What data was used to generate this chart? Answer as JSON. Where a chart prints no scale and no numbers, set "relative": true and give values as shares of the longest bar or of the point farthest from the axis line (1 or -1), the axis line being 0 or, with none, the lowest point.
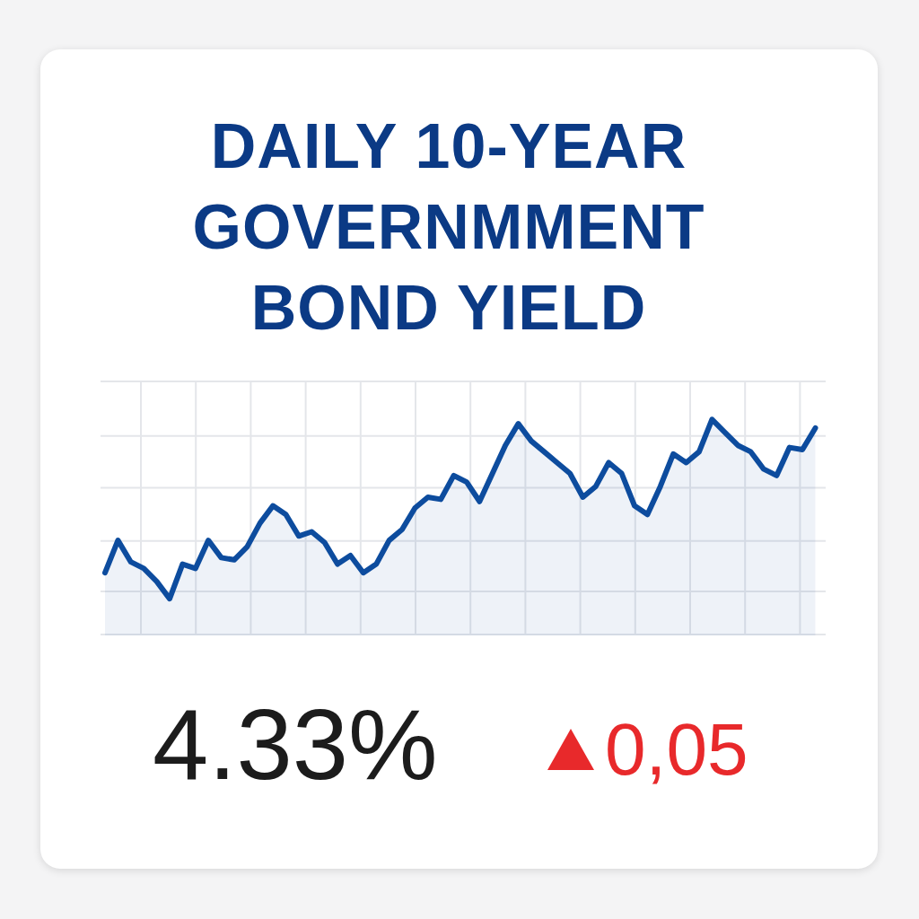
{
  "chart_data": {
    "type": "area",
    "title": "DAILY 10-YEAR GOVERNMMENT BOND YIELD",
    "relative": true,
    "grid": true,
    "categories": [
      null,
      null,
      null,
      null,
      null,
      null,
      null,
      null,
      null,
      null,
      null,
      null,
      null,
      null,
      null,
      null,
      null,
      null,
      null,
      null,
      null,
      null,
      null,
      null,
      null,
      null,
      null,
      null,
      null,
      null,
      null,
      null,
      null,
      null,
      null,
      null,
      null,
      null,
      null,
      null,
      null,
      null,
      null,
      null,
      null,
      null,
      null,
      null,
      null,
      null,
      null,
      null,
      null,
      null,
      null,
      null
    ],
    "series": [
      {
        "color": "#0d4c9e",
        "values": [
          0.29,
          0.44,
          0.34,
          0.31,
          0.25,
          0.17,
          0.33,
          0.31,
          0.44,
          0.36,
          0.35,
          0.41,
          0.52,
          0.6,
          0.56,
          0.46,
          0.48,
          0.43,
          0.33,
          0.37,
          0.29,
          0.33,
          0.44,
          0.49,
          0.59,
          0.64,
          0.63,
          0.74,
          0.71,
          0.62,
          0.75,
          0.88,
          0.98,
          0.9,
          0.85,
          0.8,
          0.75,
          0.64,
          0.69,
          0.8,
          0.75,
          0.6,
          0.56,
          0.69,
          0.84,
          0.8,
          0.85,
          1,
          0.94,
          0.88,
          0.85,
          0.77,
          0.74,
          0.87,
          0.86,
          0.96
        ]
      }
    ],
    "annotations": [
      "4.33%",
      "0,05"
    ]
  }
}
